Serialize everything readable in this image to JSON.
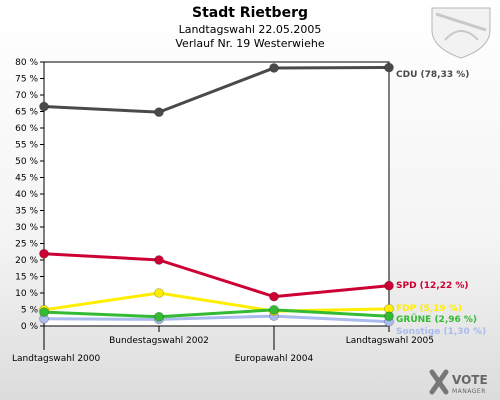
{
  "chart_data": {
    "type": "line",
    "title": "Stadt Rietberg",
    "subtitle": "Landtagswahl 22.05.2005",
    "subtitle2": "Verlauf Nr. 19 Westerwiehe",
    "categories": [
      "Landtagswahl 2000",
      "Bundestagswahl 2002",
      "Europawahl 2004",
      "Landtagswahl 2005"
    ],
    "ylim": [
      0,
      80
    ],
    "yticks": [
      "0 %",
      "5 %",
      "10 %",
      "15 %",
      "20 %",
      "25 %",
      "30 %",
      "35 %",
      "40 %",
      "45 %",
      "50 %",
      "55 %",
      "60 %",
      "65 %",
      "70 %",
      "75 %",
      "80 %"
    ],
    "grid": false,
    "series": [
      {
        "name": "CDU",
        "label": "CDU (78,33 %)",
        "color": "#4a4a4a",
        "values": [
          66.5,
          64.8,
          78.2,
          78.33
        ]
      },
      {
        "name": "SPD",
        "label": "SPD (12,22 %)",
        "color": "#cc0033",
        "values": [
          21.9,
          20.0,
          8.9,
          12.22
        ]
      },
      {
        "name": "FDP",
        "label": "FDP (5,19 %)",
        "color": "#ffee00",
        "values": [
          4.9,
          10.0,
          4.5,
          5.19
        ]
      },
      {
        "name": "GRÜNE",
        "label": "GRÜNE (2,96 %)",
        "color": "#33bb33",
        "values": [
          4.2,
          2.8,
          4.9,
          2.96
        ]
      },
      {
        "name": "Sonstige",
        "label": "Sonstige (1,30 %)",
        "color": "#aabbee",
        "values": [
          2.2,
          2.0,
          3.0,
          1.3
        ]
      }
    ]
  },
  "branding": {
    "logo_line1": "VOTE",
    "logo_line2": "MANAGER"
  }
}
